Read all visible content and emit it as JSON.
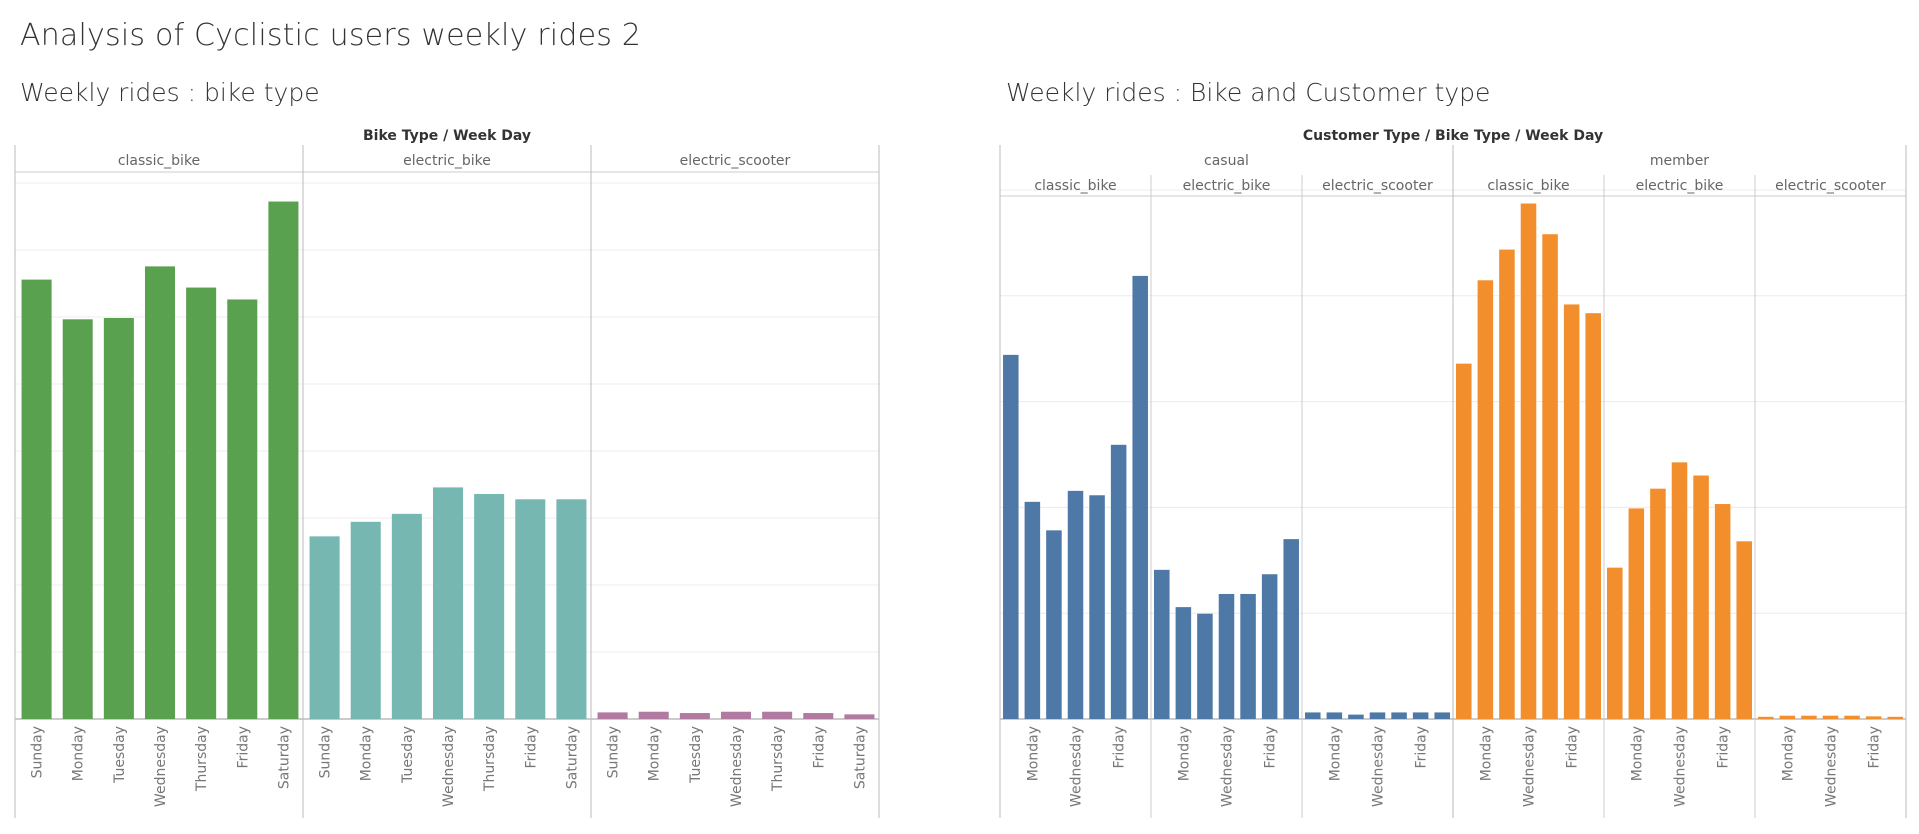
{
  "dashboard": {
    "title": "Analysis of Cyclistic users weekly rides 2"
  },
  "chart_data": [
    {
      "type": "bar",
      "title": "Weekly rides : bike type",
      "column_header": "Bike Type  /  Week Day",
      "xlabel": "",
      "ylabel": "",
      "grid": true,
      "facets": [
        {
          "name": "classic_bike",
          "color": "#59A14F",
          "categories": [
            "Sunday",
            "Monday",
            "Tuesday",
            "Wednesday",
            "Thursday",
            "Friday",
            "Saturday"
          ],
          "values": [
            332000,
            302000,
            303000,
            342000,
            326000,
            317000,
            391000
          ]
        },
        {
          "name": "electric_bike",
          "color": "#76B7B2",
          "categories": [
            "Sunday",
            "Monday",
            "Tuesday",
            "Wednesday",
            "Thursday",
            "Friday",
            "Saturday"
          ],
          "values": [
            138000,
            149000,
            155000,
            175000,
            170000,
            166000,
            166000
          ]
        },
        {
          "name": "electric_scooter",
          "color": "#B07AA1",
          "categories": [
            "Sunday",
            "Monday",
            "Tuesday",
            "Wednesday",
            "Thursday",
            "Friday",
            "Saturday"
          ],
          "values": [
            5000,
            5500,
            4500,
            5500,
            5500,
            4500,
            3500
          ]
        }
      ],
      "ylim": [
        0,
        405000
      ]
    },
    {
      "type": "bar",
      "title": "Weekly rides : Bike and Customer type",
      "column_header": "Customer Type  /  Bike Type  /  Week Day",
      "xlabel": "",
      "ylabel": "",
      "grid": true,
      "groups": [
        {
          "name": "casual",
          "color": "#4E79A7",
          "facets": [
            {
              "name": "classic_bike",
              "categories": [
                "Sunday",
                "Monday",
                "Tuesday",
                "Wednesday",
                "Thursday",
                "Friday",
                "Saturday"
              ],
              "tick_labels": [
                "Monday",
                "Wednesday",
                "Friday"
              ],
              "values": [
                166000,
                99000,
                86000,
                104000,
                102000,
                125000,
                202000
              ]
            },
            {
              "name": "electric_bike",
              "categories": [
                "Sunday",
                "Monday",
                "Tuesday",
                "Wednesday",
                "Thursday",
                "Friday",
                "Saturday"
              ],
              "tick_labels": [
                "Monday",
                "Wednesday",
                "Friday"
              ],
              "values": [
                68000,
                51000,
                48000,
                57000,
                57000,
                66000,
                82000
              ]
            },
            {
              "name": "electric_scooter",
              "categories": [
                "Sunday",
                "Monday",
                "Tuesday",
                "Wednesday",
                "Thursday",
                "Friday",
                "Saturday"
              ],
              "tick_labels": [
                "Monday",
                "Wednesday",
                "Friday"
              ],
              "values": [
                3000,
                3000,
                2000,
                3000,
                3000,
                3000,
                3000
              ]
            }
          ]
        },
        {
          "name": "member",
          "color": "#F28E2B",
          "facets": [
            {
              "name": "classic_bike",
              "categories": [
                "Sunday",
                "Monday",
                "Tuesday",
                "Wednesday",
                "Thursday",
                "Friday",
                "Saturday"
              ],
              "tick_labels": [
                "Monday",
                "Wednesday",
                "Friday"
              ],
              "values": [
                162000,
                200000,
                214000,
                235000,
                221000,
                189000,
                185000
              ]
            },
            {
              "name": "electric_bike",
              "categories": [
                "Sunday",
                "Monday",
                "Tuesday",
                "Wednesday",
                "Thursday",
                "Friday",
                "Saturday"
              ],
              "tick_labels": [
                "Monday",
                "Wednesday",
                "Friday"
              ],
              "values": [
                69000,
                96000,
                105000,
                117000,
                111000,
                98000,
                81000
              ]
            },
            {
              "name": "electric_scooter",
              "categories": [
                "Sunday",
                "Monday",
                "Tuesday",
                "Wednesday",
                "Thursday",
                "Friday",
                "Saturday"
              ],
              "tick_labels": [
                "Monday",
                "Wednesday",
                "Friday"
              ],
              "values": [
                1000,
                1500,
                1500,
                1500,
                1500,
                1200,
                1000
              ]
            }
          ]
        }
      ],
      "ylim": [
        0,
        248000
      ]
    }
  ]
}
